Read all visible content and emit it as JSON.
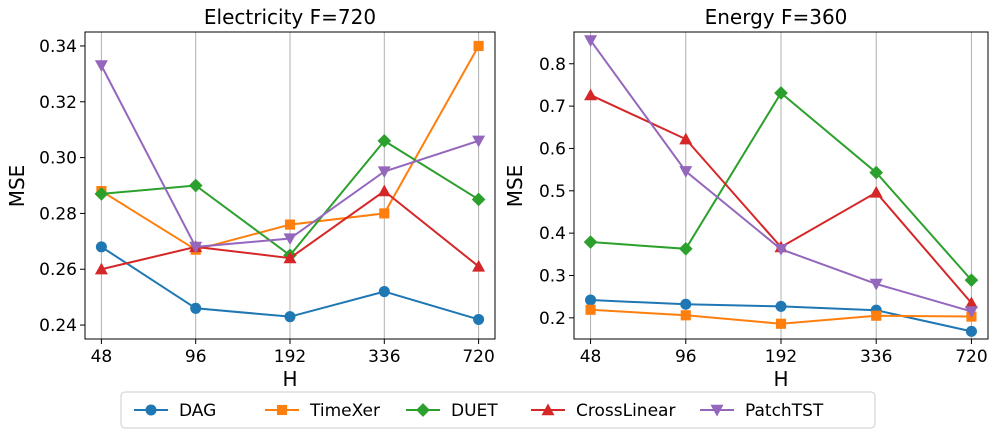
{
  "chart_data": [
    {
      "type": "line",
      "title": "Electricity F=720",
      "xlabel": "H",
      "ylabel": "MSE",
      "categories": [
        "48",
        "96",
        "192",
        "336",
        "720"
      ],
      "ylim": [
        0.235,
        0.345
      ],
      "yticks": [
        0.24,
        0.26,
        0.28,
        0.3,
        0.32,
        0.34
      ],
      "ytick_labels": [
        "0.24",
        "0.26",
        "0.28",
        "0.30",
        "0.32",
        "0.34"
      ],
      "grid": "vertical",
      "series": [
        {
          "name": "DAG",
          "color": "#1f77b4",
          "marker": "circle",
          "values": [
            0.268,
            0.246,
            0.243,
            0.252,
            0.242
          ]
        },
        {
          "name": "TimeXer",
          "color": "#ff7f0e",
          "marker": "square",
          "values": [
            0.288,
            0.267,
            0.276,
            0.28,
            0.34
          ]
        },
        {
          "name": "DUET",
          "color": "#2ca02c",
          "marker": "diamond",
          "values": [
            0.287,
            0.29,
            0.265,
            0.306,
            0.285
          ]
        },
        {
          "name": "CrossLinear",
          "color": "#d62728",
          "marker": "triangle-up",
          "values": [
            0.26,
            0.268,
            0.264,
            0.288,
            0.261
          ]
        },
        {
          "name": "PatchTST",
          "color": "#9467bd",
          "marker": "triangle-down",
          "values": [
            0.333,
            0.268,
            0.271,
            0.295,
            0.306
          ]
        }
      ]
    },
    {
      "type": "line",
      "title": "Energy F=360",
      "xlabel": "H",
      "ylabel": "MSE",
      "categories": [
        "48",
        "96",
        "192",
        "336",
        "720"
      ],
      "ylim": [
        0.15,
        0.875
      ],
      "yticks": [
        0.2,
        0.3,
        0.4,
        0.5,
        0.6,
        0.7,
        0.8
      ],
      "ytick_labels": [
        "0.2",
        "0.3",
        "0.4",
        "0.5",
        "0.6",
        "0.7",
        "0.8"
      ],
      "grid": "vertical",
      "series": [
        {
          "name": "DAG",
          "color": "#1f77b4",
          "marker": "circle",
          "values": [
            0.242,
            0.232,
            0.227,
            0.218,
            0.168
          ]
        },
        {
          "name": "TimeXer",
          "color": "#ff7f0e",
          "marker": "square",
          "values": [
            0.219,
            0.206,
            0.186,
            0.205,
            0.203
          ]
        },
        {
          "name": "DUET",
          "color": "#2ca02c",
          "marker": "diamond",
          "values": [
            0.379,
            0.363,
            0.731,
            0.543,
            0.289
          ]
        },
        {
          "name": "CrossLinear",
          "color": "#d62728",
          "marker": "triangle-up",
          "values": [
            0.726,
            0.622,
            0.367,
            0.496,
            0.235
          ]
        },
        {
          "name": "PatchTST",
          "color": "#9467bd",
          "marker": "triangle-down",
          "values": [
            0.855,
            0.546,
            0.362,
            0.28,
            0.215
          ]
        }
      ]
    }
  ],
  "legend": {
    "placement": "bottom-center",
    "entries": [
      {
        "label": "DAG",
        "color": "#1f77b4",
        "marker": "circle"
      },
      {
        "label": "TimeXer",
        "color": "#ff7f0e",
        "marker": "square"
      },
      {
        "label": "DUET",
        "color": "#2ca02c",
        "marker": "diamond"
      },
      {
        "label": "CrossLinear",
        "color": "#d62728",
        "marker": "triangle-up"
      },
      {
        "label": "PatchTST",
        "color": "#9467bd",
        "marker": "triangle-down"
      }
    ]
  }
}
